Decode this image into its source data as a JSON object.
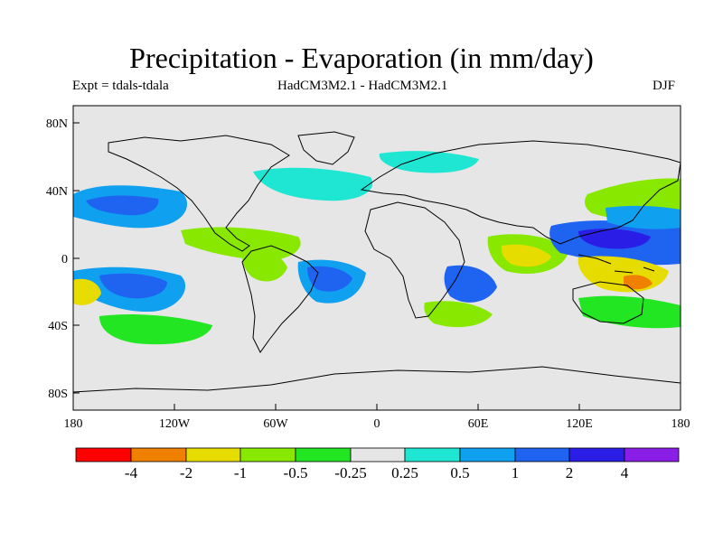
{
  "title": "Precipitation - Evaporation (in mm/day)",
  "subtitle_left": "Expt = tdals-tdala",
  "subtitle_center": "HadCM3M2.1 - HadCM3M2.1",
  "subtitle_right": "DJF",
  "axes": {
    "lat_ticks": [
      "80N",
      "40N",
      "0",
      "40S",
      "80S"
    ],
    "lon_ticks": [
      "180",
      "120W",
      "60W",
      "0",
      "60E",
      "120E",
      "180"
    ]
  },
  "colorbar": {
    "colors": [
      "#ff0000",
      "#f08000",
      "#e6dc00",
      "#88e800",
      "#22e622",
      "#e6e6e6",
      "#1ee6d2",
      "#10a0f0",
      "#1e64f0",
      "#2a1ee6",
      "#8a1ee6"
    ],
    "labels": [
      "-4",
      "-2",
      "-1",
      "-0.5",
      "-0.25",
      "0.25",
      "0.5",
      "1",
      "2",
      "4"
    ]
  },
  "colors": {
    "ocean_background": "#e6e6e6",
    "coastline": "#000000"
  }
}
